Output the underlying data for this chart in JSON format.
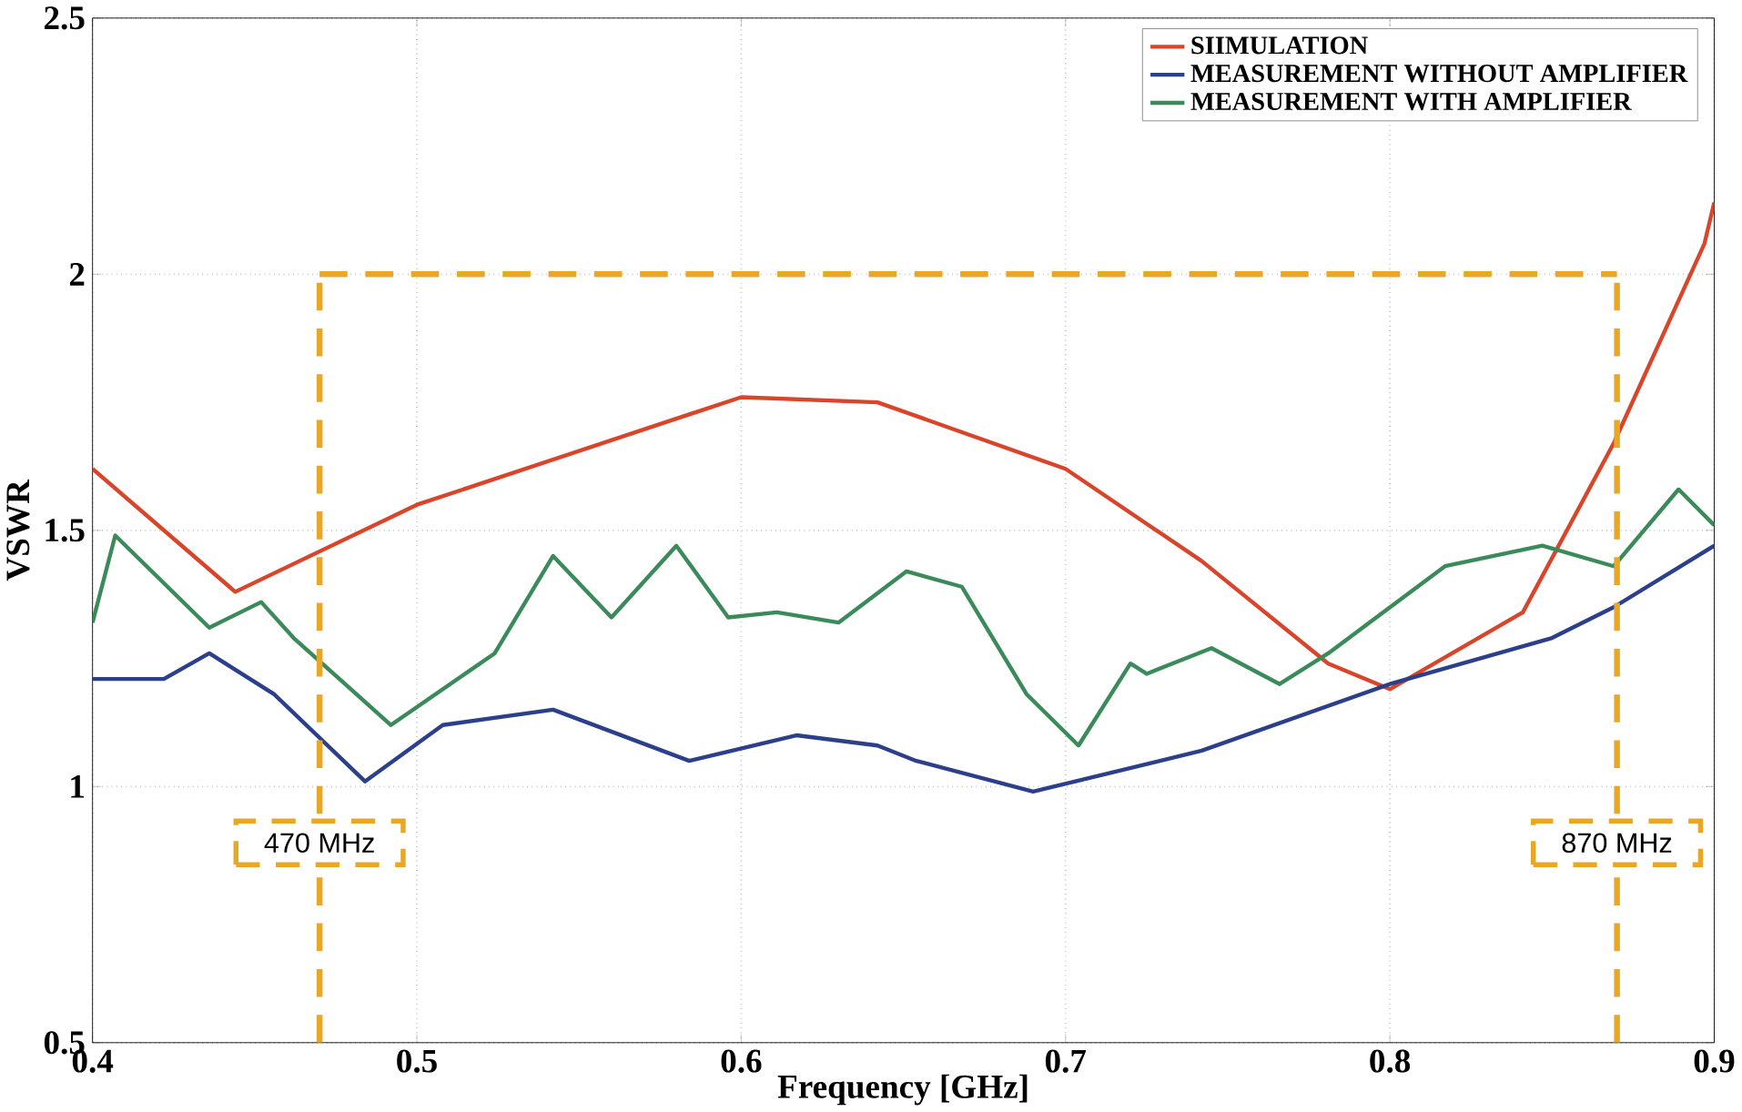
{
  "chart_data": {
    "type": "line",
    "xlabel": "Frequency  [GHz]",
    "ylabel": "VSWR",
    "xlim": [
      0.4,
      0.9
    ],
    "xticks": [
      0.4,
      0.5,
      0.6,
      0.7,
      0.8,
      0.9
    ],
    "ylim": [
      0.5,
      2.5
    ],
    "yticks": [
      0.5,
      1,
      1.5,
      2,
      2.5
    ],
    "grid": true,
    "legend": "top right",
    "line_style": "solid",
    "series": [
      {
        "name": "SIIMULATION",
        "color": "#d9452b",
        "x": [
          0.4,
          0.444,
          0.5,
          0.6,
          0.642,
          0.7,
          0.742,
          0.781,
          0.8,
          0.841,
          0.869,
          0.897,
          0.9
        ],
        "values": [
          1.62,
          1.38,
          1.55,
          1.76,
          1.75,
          1.62,
          1.44,
          1.24,
          1.19,
          1.34,
          1.67,
          2.06,
          2.14
        ]
      },
      {
        "name": "MEASUREMENT WITHOUT AMPLIFIER",
        "color": "#2b3f8a",
        "x": [
          0.4,
          0.422,
          0.436,
          0.456,
          0.484,
          0.508,
          0.542,
          0.584,
          0.617,
          0.642,
          0.654,
          0.69,
          0.742,
          0.8,
          0.85,
          0.869,
          0.9
        ],
        "values": [
          1.21,
          1.21,
          1.26,
          1.18,
          1.01,
          1.12,
          1.15,
          1.05,
          1.1,
          1.08,
          1.05,
          0.99,
          1.07,
          1.2,
          1.29,
          1.35,
          1.47
        ]
      },
      {
        "name": "MEASUREMENT WITH AMPLIFIER",
        "color": "#3a8a5a",
        "x": [
          0.4,
          0.407,
          0.436,
          0.452,
          0.462,
          0.492,
          0.524,
          0.542,
          0.56,
          0.58,
          0.596,
          0.611,
          0.63,
          0.651,
          0.668,
          0.688,
          0.704,
          0.72,
          0.725,
          0.745,
          0.766,
          0.781,
          0.817,
          0.847,
          0.869,
          0.889,
          0.9
        ],
        "values": [
          1.32,
          1.49,
          1.31,
          1.36,
          1.29,
          1.12,
          1.26,
          1.45,
          1.33,
          1.47,
          1.33,
          1.34,
          1.32,
          1.42,
          1.39,
          1.18,
          1.08,
          1.24,
          1.22,
          1.27,
          1.2,
          1.26,
          1.43,
          1.47,
          1.43,
          1.58,
          1.51
        ]
      }
    ],
    "ref_lines": [
      {
        "axis": "x",
        "value": 0.47,
        "label": "470 MHz",
        "color": "#e8a825",
        "line_style": "dashed"
      },
      {
        "axis": "x",
        "value": 0.87,
        "label": "870 MHz",
        "color": "#e8a825",
        "line_style": "dashed"
      },
      {
        "axis": "y",
        "value": 2,
        "color": "#e8a825",
        "line_style": "dashed"
      }
    ]
  }
}
